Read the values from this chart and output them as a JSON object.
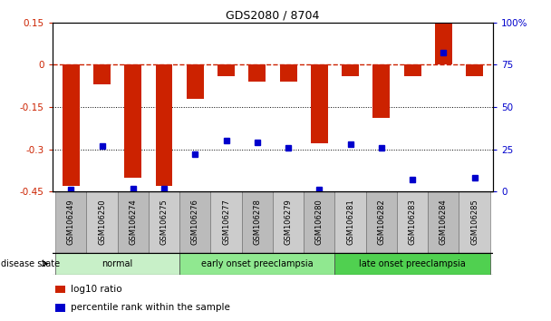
{
  "title": "GDS2080 / 8704",
  "samples": [
    "GSM106249",
    "GSM106250",
    "GSM106274",
    "GSM106275",
    "GSM106276",
    "GSM106277",
    "GSM106278",
    "GSM106279",
    "GSM106280",
    "GSM106281",
    "GSM106282",
    "GSM106283",
    "GSM106284",
    "GSM106285"
  ],
  "log10_ratio": [
    -0.43,
    -0.07,
    -0.4,
    -0.43,
    -0.12,
    -0.04,
    -0.06,
    -0.06,
    -0.28,
    -0.04,
    -0.19,
    -0.04,
    0.148,
    -0.04
  ],
  "percentile_rank": [
    1,
    27,
    2,
    2,
    22,
    30,
    29,
    26,
    1,
    28,
    26,
    7,
    82,
    8
  ],
  "groups": [
    {
      "label": "normal",
      "start": 0,
      "end": 4,
      "color": "#c8f0c8"
    },
    {
      "label": "early onset preeclampsia",
      "start": 4,
      "end": 9,
      "color": "#90e890"
    },
    {
      "label": "late onset preeclampsia",
      "start": 9,
      "end": 14,
      "color": "#50d050"
    }
  ],
  "ylim_left": [
    -0.45,
    0.15
  ],
  "ylim_right": [
    0,
    100
  ],
  "bar_color": "#cc2200",
  "dot_color": "#0000cc",
  "dotline1": -0.15,
  "dotline2": -0.3,
  "yticks_left": [
    -0.45,
    -0.3,
    -0.15,
    0,
    0.15
  ],
  "ytick_labels_left": [
    "-0.45",
    "-0.3",
    "-0.15",
    "0",
    "0.15"
  ],
  "yticks_right": [
    0,
    25,
    50,
    75,
    100
  ],
  "ytick_labels_right": [
    "0",
    "25",
    "50",
    "75",
    "100%"
  ]
}
